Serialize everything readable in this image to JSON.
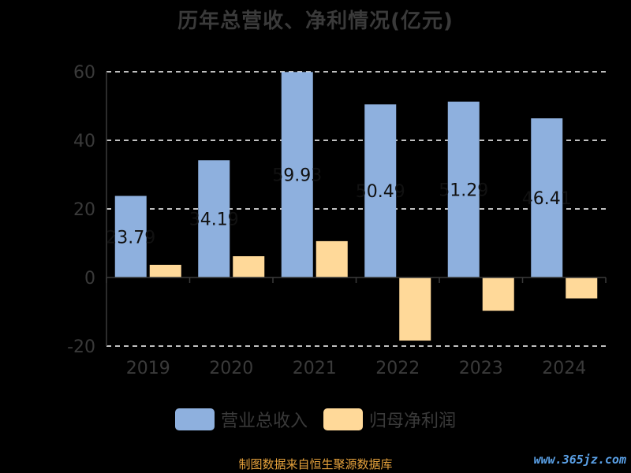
{
  "title": "历年总营收、净利情况(亿元)",
  "source": "制图数据来自恒生聚源数据库",
  "watermark": "www.365jz.com",
  "colors": {
    "revenue": "#8eb0de",
    "profit": "#ffd999",
    "axis": "#3a3a3a",
    "grid": "#ffffff",
    "text": "#3a3a3a"
  },
  "chart_data": {
    "type": "bar",
    "categories": [
      "2019",
      "2020",
      "2021",
      "2022",
      "2023",
      "2024"
    ],
    "series": [
      {
        "name": "营业总收入",
        "values": [
          23.79,
          34.19,
          59.93,
          50.49,
          51.29,
          46.41
        ],
        "labels": [
          "23.79",
          "34.19",
          "59.93",
          "50.49",
          "51.29",
          "46.41"
        ]
      },
      {
        "name": "归母净利润",
        "values": [
          3.7,
          6.2,
          10.6,
          -18.4,
          -9.7,
          -6.1
        ]
      }
    ],
    "ylim": [
      -20,
      60
    ],
    "yticks": [
      -20,
      0,
      20,
      40,
      60
    ],
    "grid": true,
    "legend": "bottom"
  }
}
